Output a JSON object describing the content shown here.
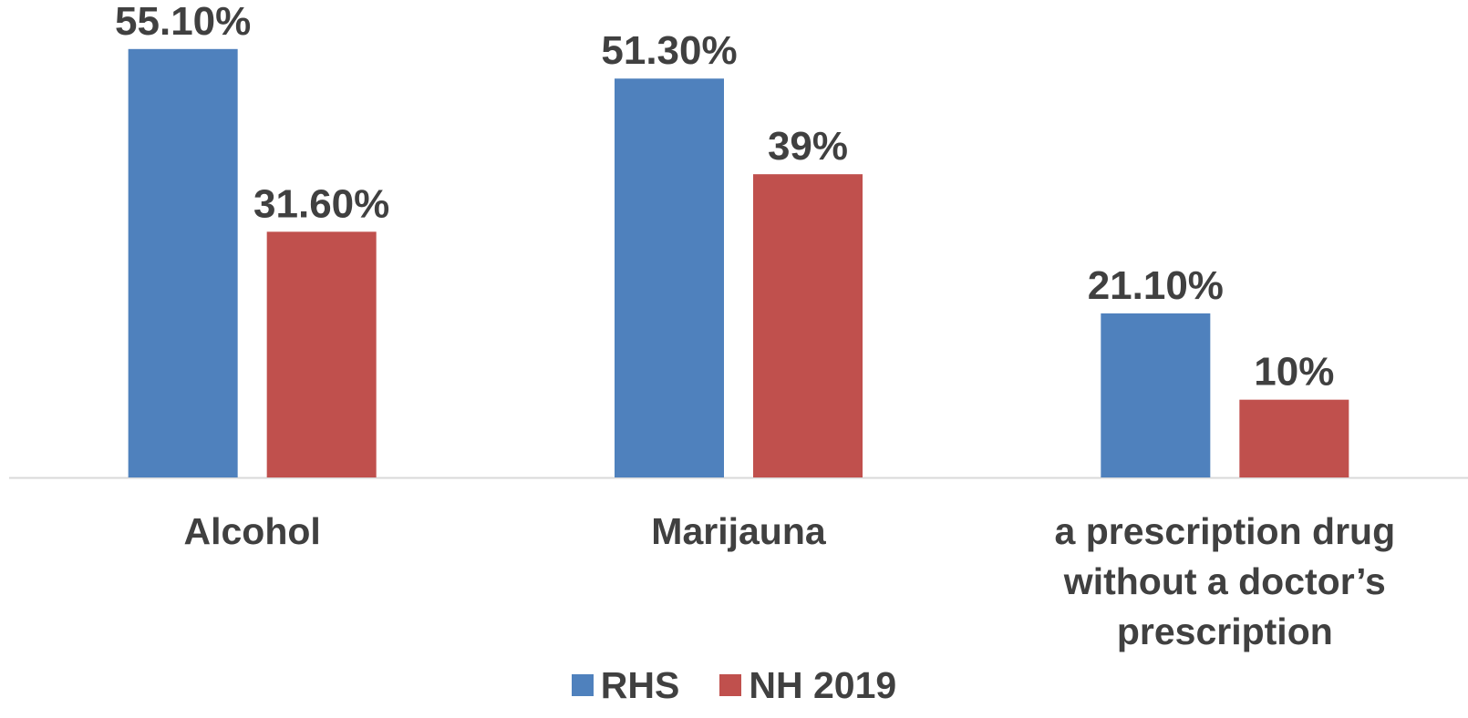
{
  "chart_data": {
    "type": "bar",
    "categories": [
      [
        "Alcohol"
      ],
      [
        "Marijauna"
      ],
      [
        "a prescription drug",
        "without a doctor’s",
        "prescription"
      ]
    ],
    "series": [
      {
        "name": "RHS",
        "color": "#4F81BD",
        "values": [
          55.1,
          51.3,
          21.1
        ],
        "labels": [
          "55.10%",
          "51.30%",
          "21.10%"
        ]
      },
      {
        "name": "NH 2019",
        "color": "#C0504D",
        "values": [
          31.6,
          39,
          10
        ],
        "labels": [
          "31.60%",
          "39%",
          "10%"
        ]
      }
    ],
    "ylim": [
      0,
      60
    ],
    "grid": false,
    "legend": "bottom",
    "axis_color": "#D9D9D9"
  }
}
